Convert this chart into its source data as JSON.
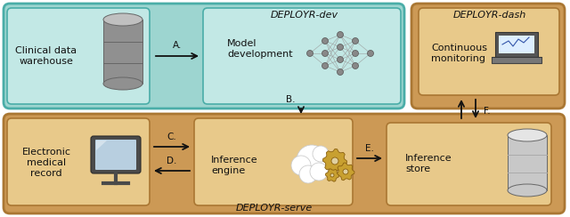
{
  "fig_width": 6.4,
  "fig_height": 2.44,
  "dpi": 100,
  "bg_color": "#ffffff",
  "teal_bg": "#9dd5d0",
  "brown_bg": "#cc9955",
  "inner_teal": "#c2e8e5",
  "inner_brown": "#e8c98a",
  "teal_border": "#4aada8",
  "brown_border": "#aa7733",
  "labels": {
    "clinical_data": "Clinical data\nwarehouse",
    "model_dev": "Model\ndevelopment",
    "deployr_dev": "DEPLOYR-dev",
    "deployr_dash": "DEPLOYR-dash",
    "deployr_serve": "DEPLOYR-serve",
    "continuous": "Continuous\nmonitoring",
    "inference_engine": "Inference\nengine",
    "inference_store": "Inference\nstore",
    "emr": "Electronic\nmedical\nrecord",
    "arrow_a": "A.",
    "arrow_b": "B.",
    "arrow_c": "C.",
    "arrow_d": "D.",
    "arrow_e": "E.",
    "arrow_f": "F."
  },
  "colors": {
    "text_dark": "#111111",
    "arrow_color": "#111111"
  }
}
